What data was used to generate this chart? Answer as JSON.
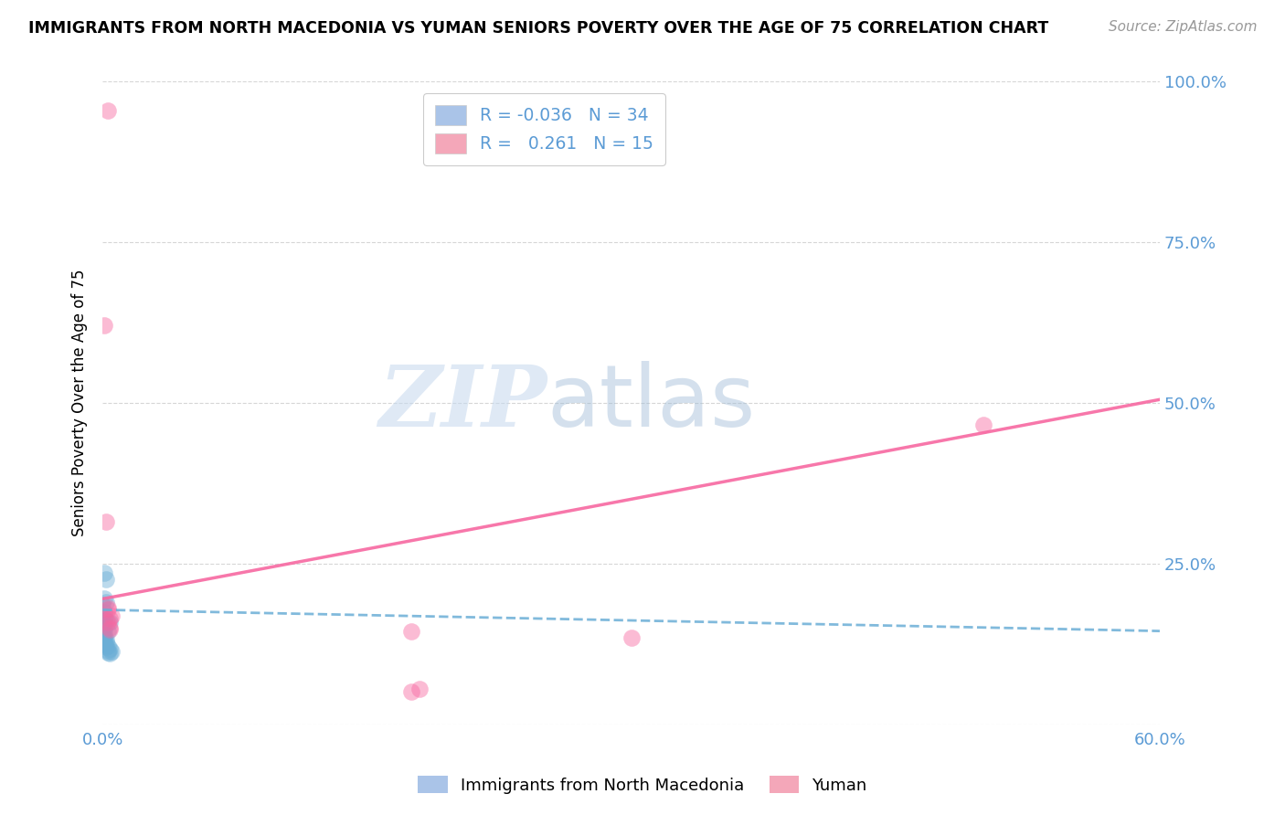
{
  "title": "IMMIGRANTS FROM NORTH MACEDONIA VS YUMAN SENIORS POVERTY OVER THE AGE OF 75 CORRELATION CHART",
  "source": "Source: ZipAtlas.com",
  "ylabel": "Seniors Poverty Over the Age of 75",
  "xlim": [
    0.0,
    0.6
  ],
  "ylim": [
    0.0,
    1.0
  ],
  "xtick_pos": [
    0.0,
    0.1,
    0.2,
    0.3,
    0.4,
    0.5,
    0.6
  ],
  "xticklabels": [
    "0.0%",
    "",
    "",
    "",
    "",
    "",
    "60.0%"
  ],
  "ytick_pos": [
    0.0,
    0.25,
    0.5,
    0.75,
    1.0
  ],
  "yticklabels_right": [
    "",
    "25.0%",
    "50.0%",
    "75.0%",
    "100.0%"
  ],
  "blue_scatter": [
    [
      0.001,
      0.235
    ],
    [
      0.002,
      0.225
    ],
    [
      0.001,
      0.195
    ],
    [
      0.002,
      0.19
    ],
    [
      0.0,
      0.185
    ],
    [
      0.001,
      0.175
    ],
    [
      0.0,
      0.17
    ],
    [
      0.001,
      0.165
    ],
    [
      0.0,
      0.16
    ],
    [
      0.001,
      0.158
    ],
    [
      0.0,
      0.155
    ],
    [
      0.001,
      0.15
    ],
    [
      0.0,
      0.147
    ],
    [
      0.001,
      0.145
    ],
    [
      0.0,
      0.143
    ],
    [
      0.0,
      0.14
    ],
    [
      0.001,
      0.138
    ],
    [
      0.0,
      0.135
    ],
    [
      0.001,
      0.132
    ],
    [
      0.0,
      0.13
    ],
    [
      0.002,
      0.128
    ],
    [
      0.001,
      0.125
    ],
    [
      0.003,
      0.122
    ],
    [
      0.002,
      0.12
    ],
    [
      0.004,
      0.118
    ],
    [
      0.003,
      0.115
    ],
    [
      0.003,
      0.112
    ],
    [
      0.004,
      0.11
    ],
    [
      0.005,
      0.113
    ],
    [
      0.004,
      0.158
    ],
    [
      0.002,
      0.162
    ],
    [
      0.003,
      0.145
    ],
    [
      0.001,
      0.127
    ],
    [
      0.002,
      0.132
    ]
  ],
  "pink_scatter": [
    [
      0.003,
      0.955
    ],
    [
      0.001,
      0.62
    ],
    [
      0.002,
      0.315
    ],
    [
      0.004,
      0.165
    ],
    [
      0.003,
      0.158
    ],
    [
      0.004,
      0.148
    ],
    [
      0.005,
      0.168
    ],
    [
      0.004,
      0.15
    ],
    [
      0.175,
      0.145
    ],
    [
      0.175,
      0.05
    ],
    [
      0.18,
      0.055
    ],
    [
      0.3,
      0.135
    ],
    [
      0.5,
      0.465
    ],
    [
      0.003,
      0.178
    ],
    [
      0.003,
      0.182
    ]
  ],
  "blue_line_x": [
    0.0,
    0.6
  ],
  "blue_line_y": [
    0.178,
    0.145
  ],
  "pink_line_x": [
    0.0,
    0.6
  ],
  "pink_line_y": [
    0.195,
    0.505
  ],
  "scatter_size": 180,
  "scatter_alpha": 0.45,
  "blue_color": "#6baed6",
  "pink_color": "#f768a1",
  "blue_legend_color": "#aac4e8",
  "pink_legend_color": "#f4a7b9",
  "legend_r_blue": "R = -0.036",
  "legend_n_blue": "N = 34",
  "legend_r_pink": "R =   0.261",
  "legend_n_pink": "N = 15",
  "legend1_label_blue": "Immigrants from North Macedonia",
  "legend1_label_pink": "Yuman",
  "watermark_zip": "ZIP",
  "watermark_atlas": "atlas",
  "tick_color": "#5b9bd5",
  "grid_color": "#cccccc",
  "title_fontsize": 12.5,
  "source_fontsize": 11,
  "tick_fontsize": 13,
  "ylabel_fontsize": 12,
  "background_color": "#ffffff"
}
